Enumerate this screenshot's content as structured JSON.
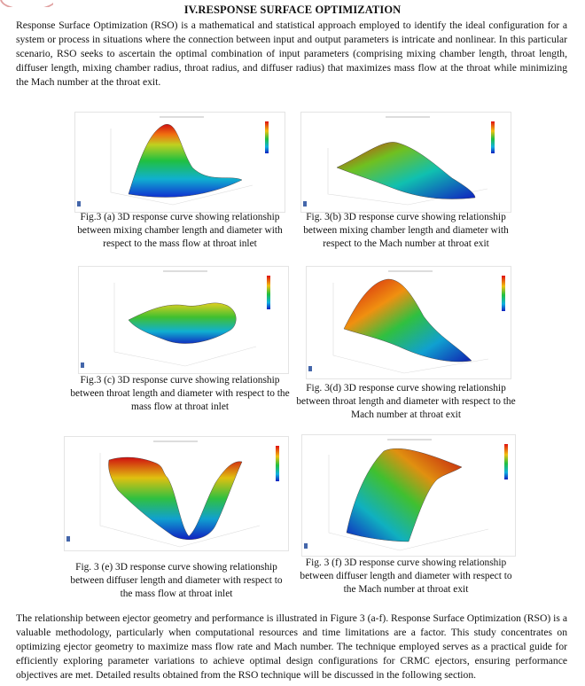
{
  "section_title": "IV.RESPONSE SURFACE OPTIMIZATION",
  "intro": "Response Surface Optimization (RSO) is a mathematical and statistical approach employed to identify the ideal configuration for a system or process in situations where the connection between input and output parameters is intricate and nonlinear. In this particular scenario, RSO seeks to ascertain the optimal combination of input parameters (comprising mixing chamber length, throat length, diffuser length, mixing chamber radius, throat radius, and diffuser radius) that maximizes mass flow at the throat while minimizing the Mach number at the throat exit.",
  "figures": [
    {
      "caption": "Fig.3 (a) 3D response curve showing relationship between mixing chamber length and diameter with respect to the mass flow at throat inlet"
    },
    {
      "caption": "Fig. 3(b) 3D response curve showing relationship between mixing chamber length and diameter with respect to the Mach number at throat exit"
    },
    {
      "caption": "Fig.3 (c) 3D response curve showing relationship between throat length and diameter with respect to the mass flow at throat inlet"
    },
    {
      "caption": "Fig. 3(d) 3D response curve showing relationship between throat length and diameter with respect to the Mach number at throat exit"
    },
    {
      "caption": "Fig. 3 (e) 3D response curve showing relationship between diffuser length and diameter with respect to the mass flow at throat inlet"
    },
    {
      "caption": "Fig. 3 (f) 3D response curve showing relationship between diffuser length and diameter with respect to the Mach number at throat exit"
    }
  ],
  "conclusion": "The relationship between ejector geometry and performance is illustrated in Figure 3 (a-f). Response Surface Optimization (RSO) is a valuable methodology, particularly when computational resources and time limitations are a factor. This study concentrates on optimizing ejector geometry to maximize mass flow rate and Mach number. The technique employed serves as a practical guide for efficiently exploring parameter variations to achieve optimal design configurations for CRMC ejectors, ensuring performance objectives are met. Detailed results obtained from the RSO technique will be discussed in the following section."
}
